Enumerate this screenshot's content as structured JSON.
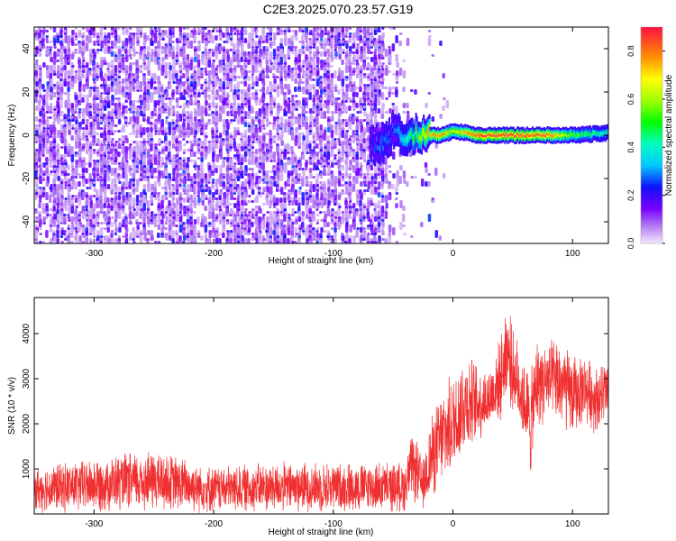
{
  "title": "C2E3.2025.070.23.57.G19",
  "colors": {
    "spectrum_low": "#8a2be2",
    "spectrum_mid": "#00c8ff",
    "spectrum_high": "#ff2020",
    "snr_line": "#f03030"
  },
  "chart_data": [
    {
      "type": "heatmap",
      "xlabel": "Height of straight line (km)",
      "ylabel": "Frequency (Hz)",
      "xlim": [
        -350,
        130
      ],
      "ylim": [
        -50,
        50
      ],
      "xticks": [
        -300,
        -200,
        -100,
        0,
        100
      ],
      "yticks": [
        -40,
        -20,
        0,
        20,
        40
      ],
      "noise_region_x": [
        -350,
        -35
      ],
      "signal_track": {
        "x": [
          -70,
          -60,
          -50,
          -40,
          -30,
          -20,
          -10,
          0,
          20,
          50,
          80,
          100,
          130
        ],
        "frequency": [
          -5,
          -4,
          2,
          -2,
          1,
          0,
          0,
          2,
          0,
          0,
          0,
          0,
          1
        ],
        "peak_amplitude": [
          0.25,
          0.35,
          0.3,
          0.45,
          0.6,
          0.85,
          0.85,
          0.7,
          0.95,
          0.95,
          0.9,
          0.6,
          0.45
        ]
      },
      "colorbar": {
        "label": "Normalized spectral amplitude",
        "range": [
          0.0,
          0.9
        ],
        "ticks": [
          0.0,
          0.2,
          0.4,
          0.6,
          0.8
        ]
      },
      "grid": false
    },
    {
      "type": "line",
      "xlabel": "Height of straight line (km)",
      "ylabel": "SNR (10 * v/v)",
      "xlim": [
        -350,
        130
      ],
      "ylim": [
        0,
        4800
      ],
      "xticks": [
        -300,
        -200,
        -100,
        0,
        100
      ],
      "yticks": [
        1000,
        2000,
        3000,
        4000
      ],
      "envelope": {
        "x": [
          -350,
          -300,
          -250,
          -200,
          -150,
          -100,
          -60,
          -40,
          -35,
          -30,
          -25,
          -20,
          -10,
          0,
          10,
          20,
          30,
          40,
          45,
          50,
          60,
          65,
          70,
          80,
          90,
          100,
          110,
          120,
          130
        ],
        "min": [
          0,
          0,
          0,
          0,
          0,
          0,
          0,
          0,
          300,
          100,
          0,
          200,
          500,
          800,
          1200,
          1500,
          1800,
          2000,
          2500,
          2200,
          1500,
          700,
          1800,
          2000,
          1800,
          1600,
          2000,
          1700,
          2000
        ],
        "max": [
          1100,
          1300,
          1500,
          1100,
          1200,
          1200,
          1200,
          1200,
          1800,
          1700,
          1200,
          2100,
          2800,
          3200,
          3800,
          3400,
          3300,
          4000,
          4900,
          4200,
          3500,
          3200,
          4000,
          3900,
          4000,
          3600,
          3600,
          3400,
          3500
        ]
      },
      "grid": false
    }
  ]
}
